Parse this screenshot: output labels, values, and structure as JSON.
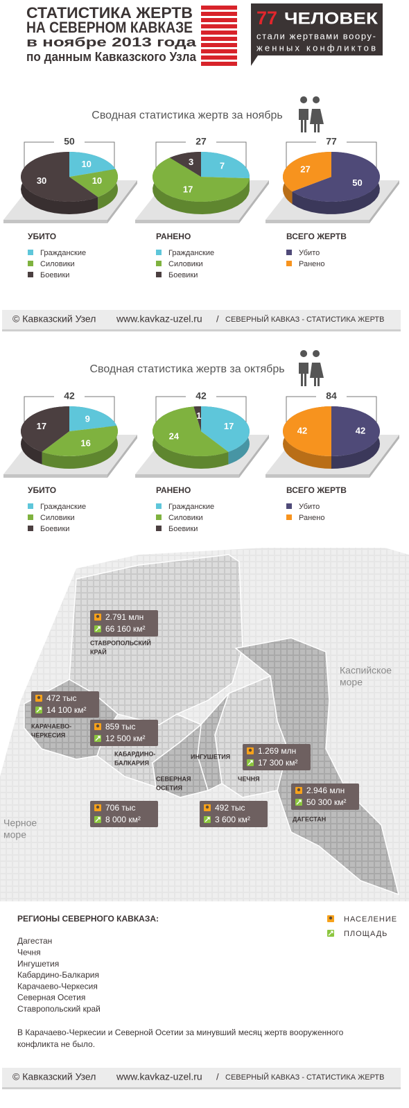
{
  "header": {
    "title_lines": [
      "СТАТИСТИКА ЖЕРТВ",
      "НА СЕВЕРНОМ КАВКАЗЕ",
      "в ноябре 2013 года",
      "по данным Кавказского Узла"
    ],
    "count": 77,
    "count_word": "ЧЕЛОВЕК",
    "subtitle_lines": [
      "стали жертвами воору-",
      "женных конфликтов"
    ]
  },
  "sections": [
    {
      "title": "Сводная статистика жертв за ноябрь",
      "charts": [
        {
          "type": "pie",
          "label": "УБИТО",
          "total": 50,
          "categories": [
            "Гражданские",
            "Силовики",
            "Боевики"
          ],
          "values": [
            10,
            10,
            30
          ],
          "colors": [
            "#5ec6da",
            "#7fb23f",
            "#4b3f40"
          ]
        },
        {
          "type": "pie",
          "label": "РАНЕНО",
          "total": 27,
          "categories": [
            "Гражданские",
            "Силовики",
            "Боевики"
          ],
          "values": [
            7,
            17,
            3
          ],
          "colors": [
            "#5ec6da",
            "#7fb23f",
            "#4b3f40"
          ]
        },
        {
          "type": "pie",
          "label": "ВСЕГО ЖЕРТВ",
          "total": 77,
          "categories": [
            "Убито",
            "Ранено"
          ],
          "values": [
            50,
            27
          ],
          "colors": [
            "#4f4a78",
            "#f7931e"
          ]
        }
      ]
    },
    {
      "title": "Сводная статистика жертв за октябрь",
      "charts": [
        {
          "type": "pie",
          "label": "УБИТО",
          "total": 42,
          "categories": [
            "Гражданские",
            "Силовики",
            "Боевики"
          ],
          "values": [
            9,
            16,
            17
          ],
          "colors": [
            "#5ec6da",
            "#7fb23f",
            "#4b3f40"
          ]
        },
        {
          "type": "pie",
          "label": "РАНЕНО",
          "total": 42,
          "categories": [
            "Гражданские",
            "Силовики",
            "Боевики"
          ],
          "values": [
            17,
            24,
            1
          ],
          "colors": [
            "#5ec6da",
            "#7fb23f",
            "#4b3f40"
          ]
        },
        {
          "type": "pie",
          "label": "ВСЕГО ЖЕРТВ",
          "total": 84,
          "categories": [
            "Убито",
            "Ранено"
          ],
          "values": [
            42,
            42
          ],
          "colors": [
            "#4f4a78",
            "#f7931e"
          ]
        }
      ]
    }
  ],
  "footer": {
    "copyright": "© Кавказский Узел",
    "url": "www.kavkaz-uzel.ru",
    "separator": "/",
    "caption": "СЕВЕРНЫЙ КАВКАЗ - СТАТИСТИКА ЖЕРТВ"
  },
  "map": {
    "seas": [
      [
        "Каспийское",
        "море"
      ],
      [
        "Черное",
        "море"
      ]
    ],
    "legend": {
      "population": "НАСЕЛЕНИЕ",
      "area": "ПЛОЩАДЬ"
    },
    "regions": [
      {
        "name_lines": [
          "СТАВРОПОЛЬСКИЙ",
          "КРАЙ"
        ],
        "population": "2.791 млн",
        "area": "66 160 км²"
      },
      {
        "name_lines": [
          "КАРАЧАЕВО-",
          "ЧЕРКЕСИЯ"
        ],
        "population": "472 тыс",
        "area": "14 100 км²"
      },
      {
        "name_lines": [
          "КАБАРДИНО-",
          "БАЛКАРИЯ"
        ],
        "population": "859 тыс",
        "area": "12 500 км²"
      },
      {
        "name_lines": [
          "СЕВЕРНАЯ",
          "ОСЕТИЯ"
        ],
        "population": "706 тыс",
        "area": "8 000 км²"
      },
      {
        "name_lines": [
          "ИНГУШЕТИЯ"
        ],
        "population": "492 тыс",
        "area": "3 600 км²"
      },
      {
        "name_lines": [
          "ЧЕЧНЯ"
        ],
        "population": "1.269 млн",
        "area": "17 300 км²"
      },
      {
        "name_lines": [
          "ДАГЕСТАН"
        ],
        "population": "2.946 млн",
        "area": "50 300 км²"
      }
    ]
  },
  "regions_list": {
    "title": "РЕГИОНЫ СЕВЕРНОГО КАВКАЗА:",
    "items": [
      "Дагестан",
      "Чечня",
      "Ингушетия",
      "Кабардино-Балкария",
      "Карачаево-Черкесия",
      "Северная Осетия",
      "Ставропольский край"
    ]
  },
  "note_lines": [
    "В Карачаево-Черкесии и Северной Осетии за минувший месяц жертв вооруженного",
    "конфликта не было."
  ]
}
